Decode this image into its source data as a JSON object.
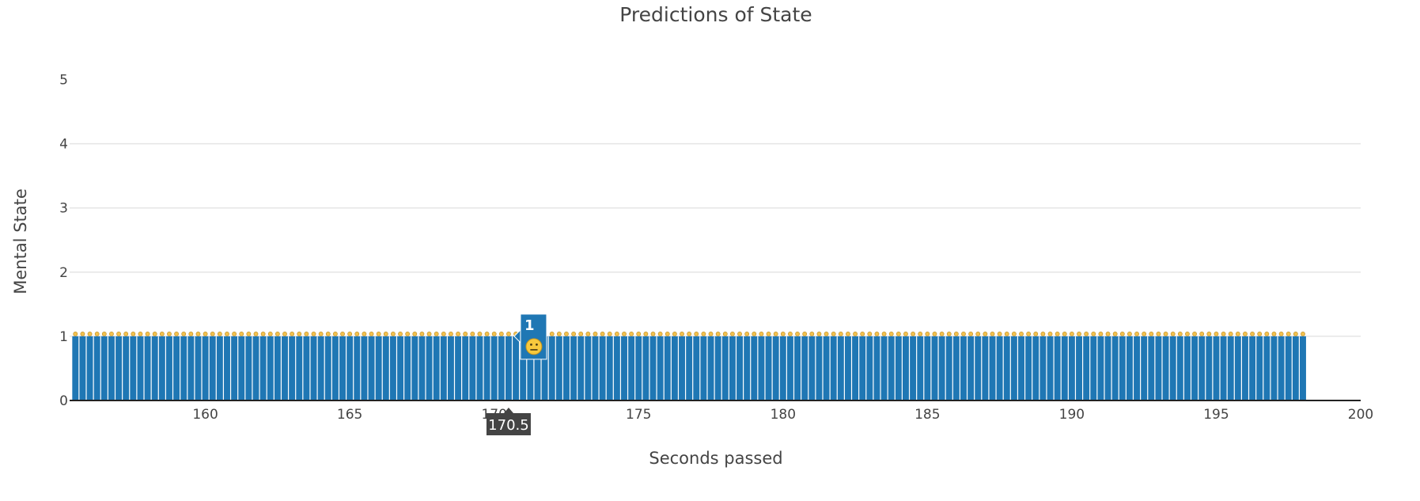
{
  "chart_data": {
    "type": "bar",
    "title": "Predictions of State",
    "xlabel": "Seconds passed",
    "ylabel": "Mental State",
    "xlim": [
      155.3,
      200
    ],
    "ylim": [
      0,
      5.5
    ],
    "x_ticks": [
      "160",
      "165",
      "170",
      "175",
      "180",
      "185",
      "190",
      "195",
      "200"
    ],
    "y_ticks": [
      "0",
      "1",
      "2",
      "3",
      "4",
      "5"
    ],
    "grid": true,
    "legend": "none",
    "x_start": 155.5,
    "x_end": 198,
    "x_step": 0.25,
    "values_constant": 1,
    "marker": "neutral-face-emoji",
    "bar_color": "#1f77b4",
    "hover": {
      "x_label": "170.5",
      "y_label": "1",
      "marker": "neutral-face-emoji"
    }
  }
}
